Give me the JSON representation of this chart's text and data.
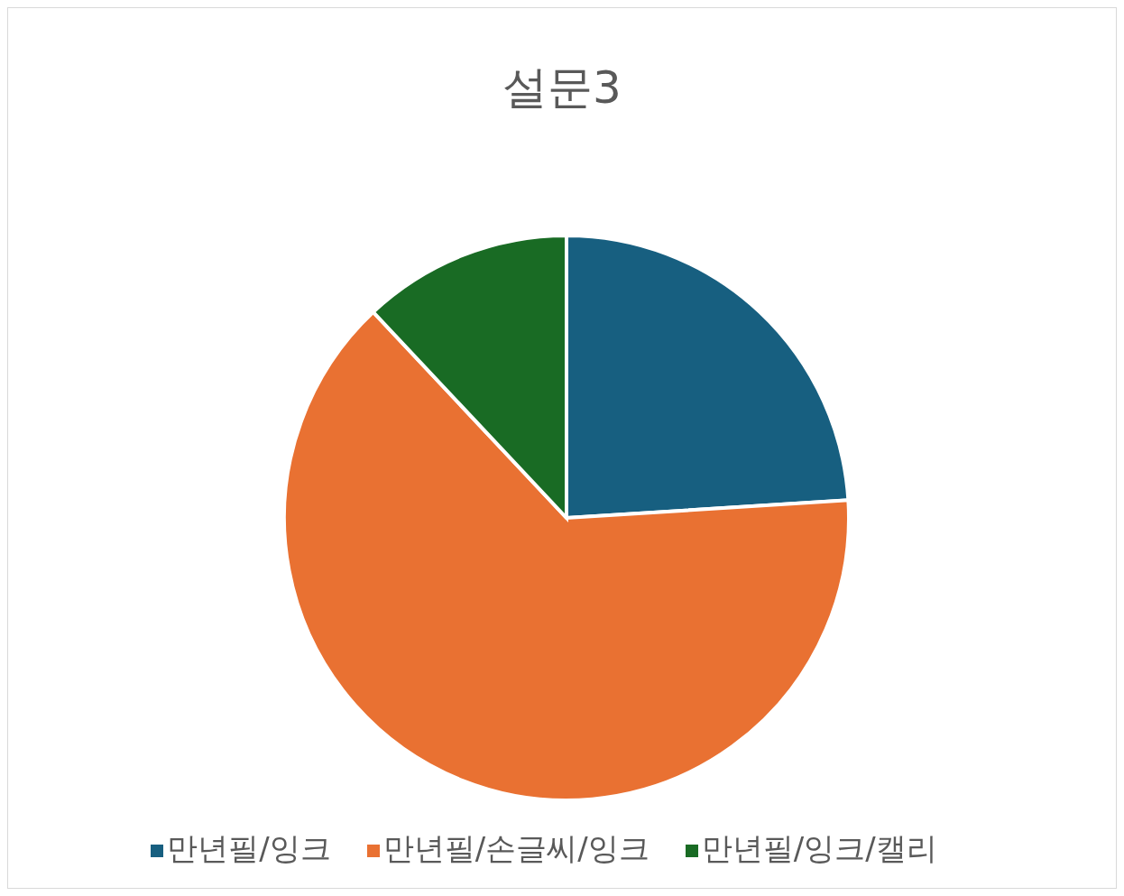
{
  "chart_data": {
    "type": "pie",
    "title": "설문3",
    "categories": [
      "만년필/잉크",
      "만년필/손글씨/잉크",
      "만년필/잉크/캘리"
    ],
    "values": [
      24,
      64,
      12
    ],
    "colors": [
      "#175f80",
      "#e97132",
      "#196b24"
    ],
    "legend": "bottom"
  }
}
